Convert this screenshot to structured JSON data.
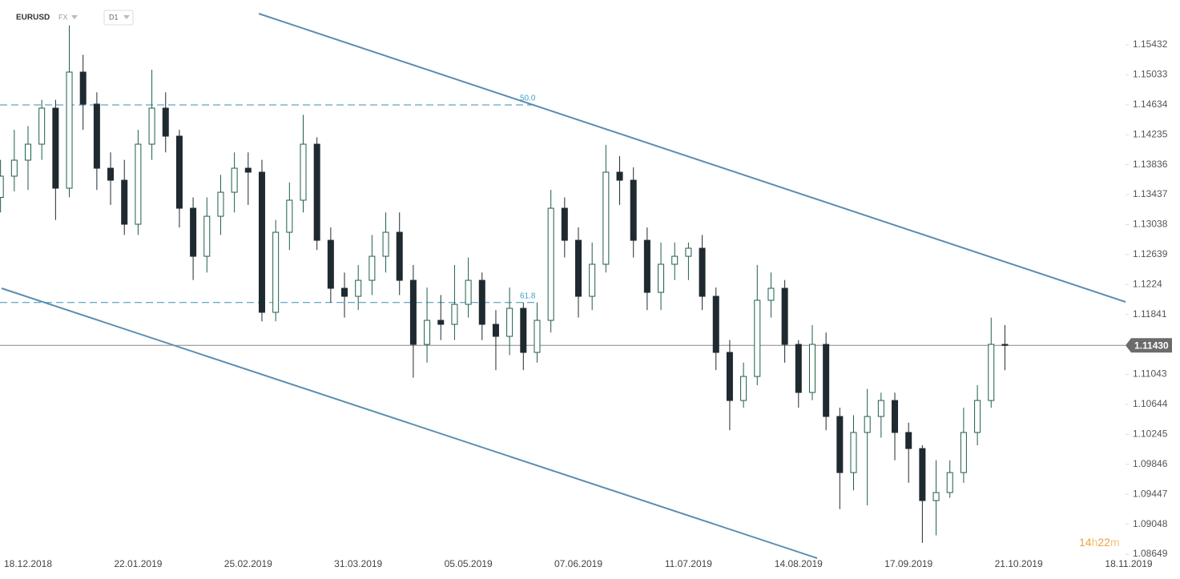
{
  "header": {
    "symbol": "EURUSD",
    "market": "FX",
    "interval": "D1"
  },
  "chart_data": {
    "type": "candlestick",
    "categories": [
      null,
      null,
      "18.12.2018",
      null,
      null,
      null,
      null,
      null,
      null,
      null,
      "22.01.2019",
      null,
      null,
      null,
      null,
      null,
      null,
      null,
      "25.02.2019",
      null,
      null,
      null,
      null,
      null,
      null,
      null,
      "31.03.2019",
      null,
      null,
      null,
      null,
      null,
      null,
      null,
      "05.05.2019",
      null,
      null,
      null,
      null,
      null,
      null,
      null,
      "07.06.2019",
      null,
      null,
      null,
      null,
      null,
      null,
      null,
      "11.07.2019",
      null,
      null,
      null,
      null,
      null,
      null,
      null,
      "14.08.2019",
      null,
      null,
      null,
      null,
      null,
      null,
      null,
      "17.09.2019",
      null,
      null,
      null,
      null,
      null,
      null,
      null,
      "21.10.2019",
      null,
      null,
      null,
      null,
      null,
      null,
      null,
      "18.11.2019",
      null
    ],
    "open": [
      1.134,
      1.13683,
      1.13896,
      1.14109,
      1.14589,
      1.13523,
      1.15069,
      1.14643,
      1.13789,
      1.13629,
      1.13043,
      1.14109,
      1.14589,
      1.14216,
      1.13256,
      1.12616,
      1.13149,
      1.13469,
      1.13789,
      1.13736,
      1.1187,
      1.12936,
      1.13363,
      1.14109,
      1.12829,
      1.1219,
      1.12083,
      1.12296,
      1.12616,
      1.12936,
      1.12296,
      1.11443,
      1.11763,
      1.1171,
      1.11976,
      1.12296,
      1.1171,
      1.1155,
      1.11923,
      1.11336,
      1.11763,
      1.13256,
      1.12829,
      1.12083,
      1.1251,
      1.13736,
      1.13629,
      1.12829,
      1.12136,
      1.1251,
      1.12616,
      1.12723,
      1.12083,
      1.11336,
      1.10696,
      1.11016,
      1.1203,
      1.1219,
      1.11443,
      1.10803,
      1.11443,
      1.10483,
      1.09736,
      1.1027,
      1.10483,
      1.10696,
      1.1027,
      1.10056,
      1.09363,
      1.0947,
      1.09736,
      1.1027,
      1.10696,
      1.11443,
      null,
      null,
      null,
      null,
      null,
      null,
      null,
      null,
      null,
      null
    ],
    "high": [
      1.139,
      1.143,
      1.1435,
      1.147,
      1.147,
      1.1569,
      1.153,
      1.148,
      1.14,
      1.139,
      1.143,
      1.151,
      1.148,
      1.143,
      1.134,
      1.134,
      1.137,
      1.14,
      1.14,
      1.139,
      1.131,
      1.136,
      1.145,
      1.142,
      1.13,
      1.124,
      1.125,
      1.129,
      1.132,
      1.132,
      1.125,
      1.122,
      1.121,
      1.125,
      1.126,
      1.124,
      1.119,
      1.122,
      1.12,
      1.12,
      1.135,
      1.134,
      1.13,
      1.128,
      1.141,
      1.1395,
      1.138,
      1.13,
      1.128,
      1.128,
      1.128,
      1.129,
      1.122,
      1.115,
      1.112,
      1.125,
      1.124,
      1.123,
      1.115,
      1.117,
      1.116,
      1.106,
      1.105,
      1.1085,
      1.108,
      1.108,
      1.104,
      1.101,
      1.099,
      1.099,
      1.106,
      1.109,
      1.118,
      1.117,
      null,
      null,
      null,
      null,
      null,
      null,
      null,
      null,
      null,
      null
    ],
    "low": [
      1.132,
      1.1348,
      1.135,
      1.139,
      1.131,
      1.134,
      1.143,
      1.135,
      1.133,
      1.129,
      1.129,
      1.139,
      1.14,
      1.13,
      1.123,
      1.124,
      1.129,
      1.132,
      1.133,
      1.1175,
      1.1175,
      1.127,
      1.132,
      1.127,
      1.12,
      1.118,
      1.119,
      1.121,
      1.124,
      1.121,
      1.11,
      1.112,
      1.115,
      1.115,
      1.118,
      1.115,
      1.111,
      1.113,
      1.111,
      1.112,
      1.116,
      1.126,
      1.118,
      1.119,
      1.124,
      1.133,
      1.126,
      1.119,
      1.119,
      1.123,
      1.123,
      1.119,
      1.111,
      1.103,
      1.106,
      1.109,
      1.118,
      1.112,
      1.106,
      1.107,
      1.103,
      1.0925,
      1.095,
      1.093,
      1.102,
      1.099,
      1.096,
      1.088,
      1.089,
      1.094,
      1.096,
      1.101,
      1.106,
      1.111,
      null,
      null,
      null,
      null,
      null,
      null,
      null,
      null,
      null,
      null
    ],
    "close": [
      1.13683,
      1.13896,
      1.14109,
      1.14589,
      1.13523,
      1.15069,
      1.14643,
      1.13789,
      1.13629,
      1.13043,
      1.14109,
      1.14589,
      1.14216,
      1.13256,
      1.12616,
      1.13149,
      1.13469,
      1.13789,
      1.13736,
      1.1187,
      1.12936,
      1.13363,
      1.14109,
      1.12829,
      1.1219,
      1.12083,
      1.12296,
      1.12616,
      1.12936,
      1.12296,
      1.11443,
      1.11763,
      1.1171,
      1.11976,
      1.12296,
      1.1171,
      1.1155,
      1.11923,
      1.11336,
      1.11763,
      1.13256,
      1.12829,
      1.12083,
      1.1251,
      1.13736,
      1.13629,
      1.12829,
      1.12136,
      1.1251,
      1.12616,
      1.12723,
      1.12083,
      1.11336,
      1.10696,
      1.11016,
      1.1203,
      1.1219,
      1.11443,
      1.10803,
      1.11443,
      1.10483,
      1.09736,
      1.1027,
      1.10483,
      1.10696,
      1.1027,
      1.10056,
      1.09363,
      1.0947,
      1.09736,
      1.1027,
      1.10696,
      1.11443,
      1.1143,
      null,
      null,
      null,
      null,
      null,
      null,
      null,
      null,
      null,
      null
    ],
    "up_color": "#ffffff",
    "up_stroke": "#1e5e4a",
    "down_color": "#1f2a30",
    "ylim": [
      1.08564,
      1.16029
    ],
    "yticks": [
      1.15432,
      1.15033,
      1.14634,
      1.14235,
      1.13836,
      1.13437,
      1.13038,
      1.12639,
      1.1224,
      {
        "value": 1.11841,
        "label": "1.11841"
      },
      1.11043,
      1.10644,
      1.10245,
      1.09846,
      1.09447,
      1.09048,
      1.08649
    ],
    "fib_levels": [
      {
        "label": "50.0",
        "value": 1.14632
      },
      {
        "label": "61.8",
        "value": 1.12
      }
    ],
    "last_price": {
      "value": 1.1143,
      "label": "1.11430"
    },
    "timer": [
      "14",
      "h",
      "22",
      "m"
    ]
  }
}
